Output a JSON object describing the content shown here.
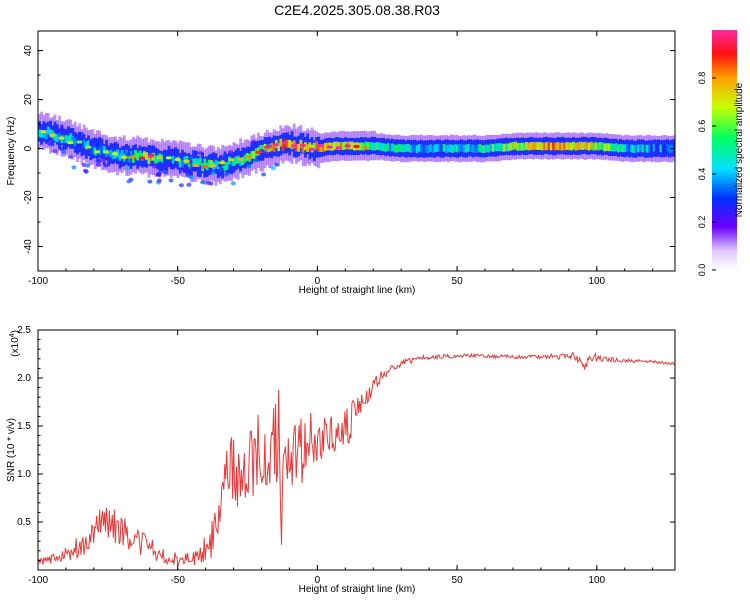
{
  "title": "C2E4.2025.305.08.38.R03",
  "chart_data": [
    {
      "type": "heatmap",
      "xlabel": "Height of straight line (km)",
      "ylabel": "Frequency (Hz)",
      "xlim": [
        -100,
        128
      ],
      "ylim": [
        -50,
        48
      ],
      "xticks": [
        -100,
        -50,
        0,
        50,
        100
      ],
      "yticks": [
        -40,
        -20,
        0,
        20,
        40
      ],
      "ridge_x": [
        -100,
        -95,
        -90,
        -85,
        -80,
        -75,
        -70,
        -65,
        -60,
        -55,
        -50,
        -45,
        -40,
        -35,
        -30,
        -25,
        -20,
        -15,
        -10,
        -5,
        0,
        5,
        10,
        20,
        30,
        40,
        50,
        60,
        70,
        80,
        90,
        100,
        110,
        120,
        128
      ],
      "ridge_freq": [
        7,
        6,
        4,
        2,
        0,
        -2,
        -3,
        -3,
        -4,
        -4,
        -5,
        -6,
        -7,
        -7,
        -5,
        -3,
        -1,
        1,
        2,
        1,
        0,
        1,
        1,
        1,
        0,
        0,
        0,
        0,
        1,
        1,
        1,
        1,
        0,
        0,
        0
      ],
      "ridge_amp": [
        0.55,
        0.6,
        0.55,
        0.45,
        0.5,
        0.5,
        0.55,
        0.7,
        0.85,
        0.5,
        0.55,
        0.6,
        0.7,
        0.55,
        0.6,
        0.65,
        0.75,
        0.9,
        0.9,
        0.85,
        0.9,
        0.9,
        0.85,
        0.6,
        0.55,
        0.55,
        0.55,
        0.6,
        0.75,
        0.9,
        0.9,
        0.8,
        0.55,
        0.5,
        0.5
      ],
      "colorbar": {
        "label": "Normalized spectral amplitude",
        "ticks": [
          "0.0",
          "0.2",
          "0.4",
          "0.6",
          "0.8"
        ],
        "range": [
          0,
          1
        ]
      }
    },
    {
      "type": "line",
      "xlabel": "Height of straight line (km)",
      "ylabel": "SNR (10 * v/v)",
      "y_scale_label": "(x10",
      "y_scale_exp": "4",
      "xlim": [
        -100,
        128
      ],
      "ylim": [
        0,
        2.5
      ],
      "xticks": [
        -100,
        -50,
        0,
        50,
        100
      ],
      "yticks": [
        "0.5",
        "1.0",
        "1.5",
        "2.0",
        "2.5"
      ],
      "series": [
        {
          "name": "SNR",
          "color": "#e83a3a",
          "x": [
            -100,
            -95,
            -90,
            -85,
            -80,
            -76,
            -72,
            -68,
            -64,
            -60,
            -56,
            -52,
            -48,
            -45,
            -42,
            -38,
            -35,
            -32,
            -30,
            -27,
            -25,
            -22,
            -20,
            -18,
            -16,
            -14,
            -13,
            -12,
            -10,
            -8,
            -6,
            -4,
            -2,
            0,
            3,
            6,
            9,
            12,
            15,
            18,
            21,
            24,
            28,
            32,
            36,
            40,
            50,
            60,
            70,
            80,
            88,
            92,
            95,
            98,
            102,
            110,
            120,
            128
          ],
          "values": [
            0.07,
            0.12,
            0.15,
            0.25,
            0.35,
            0.55,
            0.45,
            0.35,
            0.3,
            0.25,
            0.18,
            0.12,
            0.1,
            0.12,
            0.15,
            0.3,
            0.55,
            1.0,
            1.1,
            0.9,
            1.0,
            1.15,
            1.2,
            1.25,
            1.3,
            1.5,
            0.2,
            1.1,
            1.2,
            1.2,
            1.25,
            1.3,
            1.35,
            1.3,
            1.35,
            1.4,
            1.45,
            1.55,
            1.7,
            1.85,
            1.95,
            2.05,
            2.12,
            2.17,
            2.2,
            2.22,
            2.23,
            2.23,
            2.22,
            2.22,
            2.23,
            2.24,
            2.12,
            2.22,
            2.2,
            2.18,
            2.17,
            2.15
          ],
          "noise": [
            0.04,
            0.06,
            0.08,
            0.12,
            0.16,
            0.2,
            0.18,
            0.16,
            0.14,
            0.12,
            0.1,
            0.08,
            0.07,
            0.08,
            0.1,
            0.18,
            0.28,
            0.35,
            0.38,
            0.4,
            0.42,
            0.45,
            0.45,
            0.5,
            0.5,
            0.55,
            0.3,
            0.5,
            0.45,
            0.4,
            0.38,
            0.35,
            0.32,
            0.3,
            0.28,
            0.25,
            0.22,
            0.2,
            0.16,
            0.12,
            0.08,
            0.06,
            0.04,
            0.03,
            0.03,
            0.025,
            0.02,
            0.02,
            0.02,
            0.02,
            0.04,
            0.05,
            0.06,
            0.05,
            0.03,
            0.02,
            0.015,
            0.015
          ]
        }
      ]
    }
  ]
}
